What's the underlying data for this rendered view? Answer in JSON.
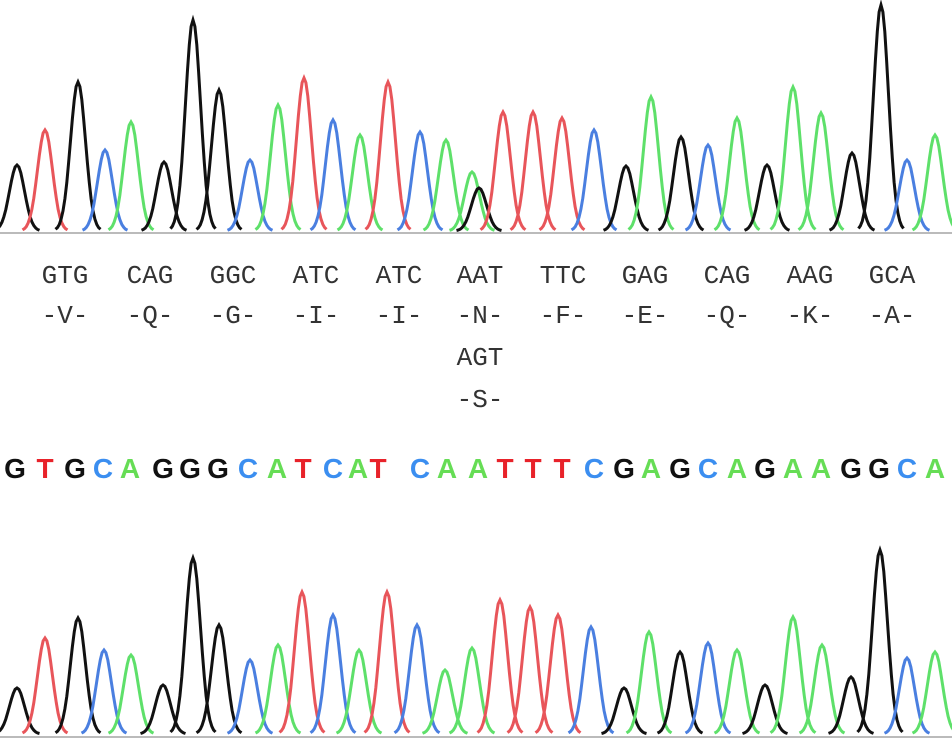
{
  "codons": [
    "GTG",
    "CAG",
    "GGC",
    "ATC",
    "ATC",
    "AAT",
    "TTC",
    "GAG",
    "CAG",
    "AAG",
    "GCA"
  ],
  "amino_acids": [
    "-V-",
    "-Q-",
    "-G-",
    "-I-",
    "-I-",
    "-N-",
    "-F-",
    "-E-",
    "-Q-",
    "-K-",
    "-A-"
  ],
  "variant": {
    "codon": "AGT",
    "amino_acid": "-S-"
  },
  "sequence": [
    "G",
    "T",
    "G",
    "C",
    "A",
    "G",
    "G",
    "G",
    "C",
    "A",
    "T",
    "C",
    "A",
    "T",
    "C",
    "A",
    "A",
    "T",
    "T",
    "T",
    "C",
    "G",
    "A",
    "G",
    "C",
    "A",
    "G",
    "A",
    "A",
    "G",
    "G",
    "C",
    "A"
  ]
}
